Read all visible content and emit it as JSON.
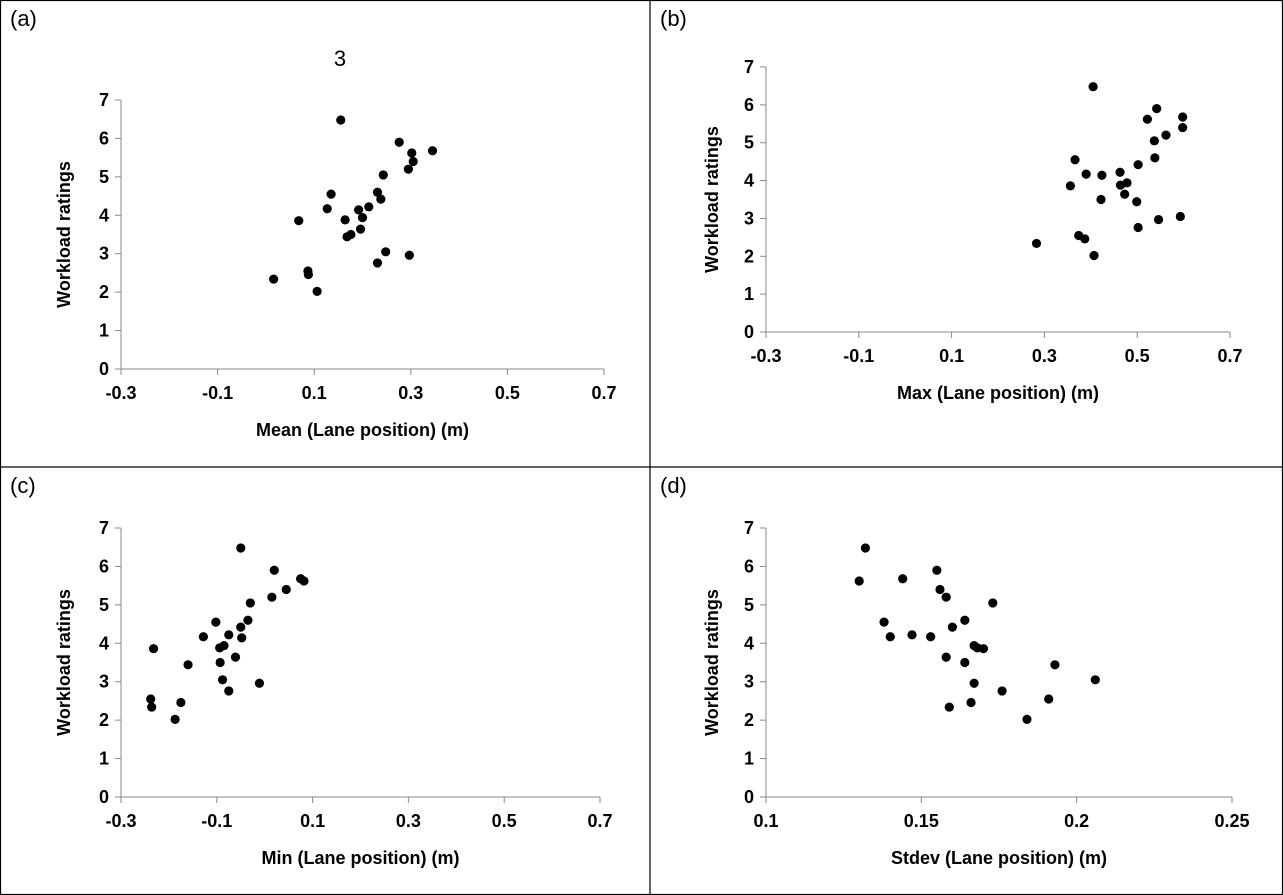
{
  "figure": {
    "stray_label": "3"
  },
  "chart_data": [
    {
      "type": "scatter",
      "panel_label": "(a)",
      "xlabel": "Mean (Lane position) (m)",
      "ylabel": "Workload ratings",
      "xlim": [
        -0.3,
        0.7
      ],
      "ylim": [
        0,
        7
      ],
      "x_ticks": [
        "-0.3",
        "-0.1",
        "0.1",
        "0.3",
        "0.5",
        "0.7"
      ],
      "y_ticks": [
        "0",
        "1",
        "2",
        "3",
        "4",
        "5",
        "6",
        "7"
      ],
      "points": [
        [
          0.155,
          6.48
        ],
        [
          0.276,
          5.9
        ],
        [
          0.345,
          5.68
        ],
        [
          0.302,
          5.62
        ],
        [
          0.305,
          5.4
        ],
        [
          0.295,
          5.2
        ],
        [
          0.243,
          5.05
        ],
        [
          0.135,
          4.55
        ],
        [
          0.231,
          4.6
        ],
        [
          0.238,
          4.42
        ],
        [
          0.213,
          4.22
        ],
        [
          0.127,
          4.17
        ],
        [
          0.192,
          4.14
        ],
        [
          0.2,
          3.94
        ],
        [
          0.068,
          3.86
        ],
        [
          0.164,
          3.88
        ],
        [
          0.196,
          3.64
        ],
        [
          0.176,
          3.5
        ],
        [
          0.168,
          3.44
        ],
        [
          0.248,
          3.05
        ],
        [
          0.297,
          2.96
        ],
        [
          0.231,
          2.76
        ],
        [
          0.087,
          2.55
        ],
        [
          0.088,
          2.46
        ],
        [
          0.016,
          2.34
        ],
        [
          0.106,
          2.02
        ]
      ]
    },
    {
      "type": "scatter",
      "panel_label": "(b)",
      "xlabel": "Max (Lane position) (m)",
      "ylabel": "Workload ratings",
      "xlim": [
        -0.3,
        0.7
      ],
      "ylim": [
        0,
        7
      ],
      "x_ticks": [
        "-0.3",
        "-0.1",
        "0.1",
        "0.3",
        "0.5",
        "0.7"
      ],
      "y_ticks": [
        "0",
        "1",
        "2",
        "3",
        "4",
        "5",
        "6",
        "7"
      ],
      "points": [
        [
          0.405,
          6.48
        ],
        [
          0.542,
          5.9
        ],
        [
          0.598,
          5.68
        ],
        [
          0.522,
          5.62
        ],
        [
          0.598,
          5.4
        ],
        [
          0.562,
          5.2
        ],
        [
          0.537,
          5.05
        ],
        [
          0.366,
          4.55
        ],
        [
          0.538,
          4.6
        ],
        [
          0.502,
          4.42
        ],
        [
          0.463,
          4.22
        ],
        [
          0.39,
          4.17
        ],
        [
          0.424,
          4.14
        ],
        [
          0.478,
          3.94
        ],
        [
          0.356,
          3.86
        ],
        [
          0.464,
          3.88
        ],
        [
          0.473,
          3.64
        ],
        [
          0.422,
          3.5
        ],
        [
          0.499,
          3.44
        ],
        [
          0.546,
          2.97
        ],
        [
          0.593,
          3.05
        ],
        [
          0.502,
          2.76
        ],
        [
          0.374,
          2.55
        ],
        [
          0.387,
          2.46
        ],
        [
          0.283,
          2.34
        ],
        [
          0.407,
          2.02
        ]
      ]
    },
    {
      "type": "scatter",
      "panel_label": "(c)",
      "xlabel": "Min (Lane position) (m)",
      "ylabel": "Workload ratings",
      "xlim": [
        -0.3,
        0.7
      ],
      "ylim": [
        0,
        7
      ],
      "x_ticks": [
        "-0.3",
        "-0.1",
        "0.1",
        "0.3",
        "0.5",
        "0.7"
      ],
      "y_ticks": [
        "0",
        "1",
        "2",
        "3",
        "4",
        "5",
        "6",
        "7"
      ],
      "points": [
        [
          -0.05,
          6.48
        ],
        [
          0.02,
          5.9
        ],
        [
          0.075,
          5.68
        ],
        [
          0.082,
          5.62
        ],
        [
          0.045,
          5.4
        ],
        [
          0.015,
          5.2
        ],
        [
          -0.03,
          5.05
        ],
        [
          -0.102,
          4.55
        ],
        [
          -0.035,
          4.6
        ],
        [
          -0.05,
          4.42
        ],
        [
          -0.075,
          4.22
        ],
        [
          -0.128,
          4.17
        ],
        [
          -0.048,
          4.14
        ],
        [
          -0.085,
          3.94
        ],
        [
          -0.232,
          3.86
        ],
        [
          -0.094,
          3.88
        ],
        [
          -0.061,
          3.64
        ],
        [
          -0.093,
          3.5
        ],
        [
          -0.16,
          3.44
        ],
        [
          -0.088,
          3.05
        ],
        [
          -0.011,
          2.96
        ],
        [
          -0.075,
          2.76
        ],
        [
          -0.238,
          2.55
        ],
        [
          -0.175,
          2.46
        ],
        [
          -0.236,
          2.34
        ],
        [
          -0.187,
          2.02
        ]
      ]
    },
    {
      "type": "scatter",
      "panel_label": "(d)",
      "xlabel": "Stdev (Lane position) (m)",
      "ylabel": "Workload ratings",
      "xlim": [
        0.1,
        0.25
      ],
      "ylim": [
        0,
        7
      ],
      "x_ticks": [
        "0.1",
        "0.15",
        "0.2",
        "0.25"
      ],
      "y_ticks": [
        "0",
        "1",
        "2",
        "3",
        "4",
        "5",
        "6",
        "7"
      ],
      "points": [
        [
          0.132,
          6.48
        ],
        [
          0.155,
          5.9
        ],
        [
          0.144,
          5.68
        ],
        [
          0.13,
          5.62
        ],
        [
          0.156,
          5.4
        ],
        [
          0.158,
          5.2
        ],
        [
          0.173,
          5.05
        ],
        [
          0.138,
          4.55
        ],
        [
          0.164,
          4.6
        ],
        [
          0.16,
          4.42
        ],
        [
          0.147,
          4.22
        ],
        [
          0.14,
          4.17
        ],
        [
          0.153,
          4.17
        ],
        [
          0.167,
          3.94
        ],
        [
          0.17,
          3.86
        ],
        [
          0.168,
          3.88
        ],
        [
          0.158,
          3.64
        ],
        [
          0.164,
          3.5
        ],
        [
          0.193,
          3.44
        ],
        [
          0.206,
          3.05
        ],
        [
          0.167,
          2.96
        ],
        [
          0.176,
          2.76
        ],
        [
          0.191,
          2.55
        ],
        [
          0.166,
          2.46
        ],
        [
          0.159,
          2.34
        ],
        [
          0.184,
          2.02
        ]
      ]
    }
  ]
}
